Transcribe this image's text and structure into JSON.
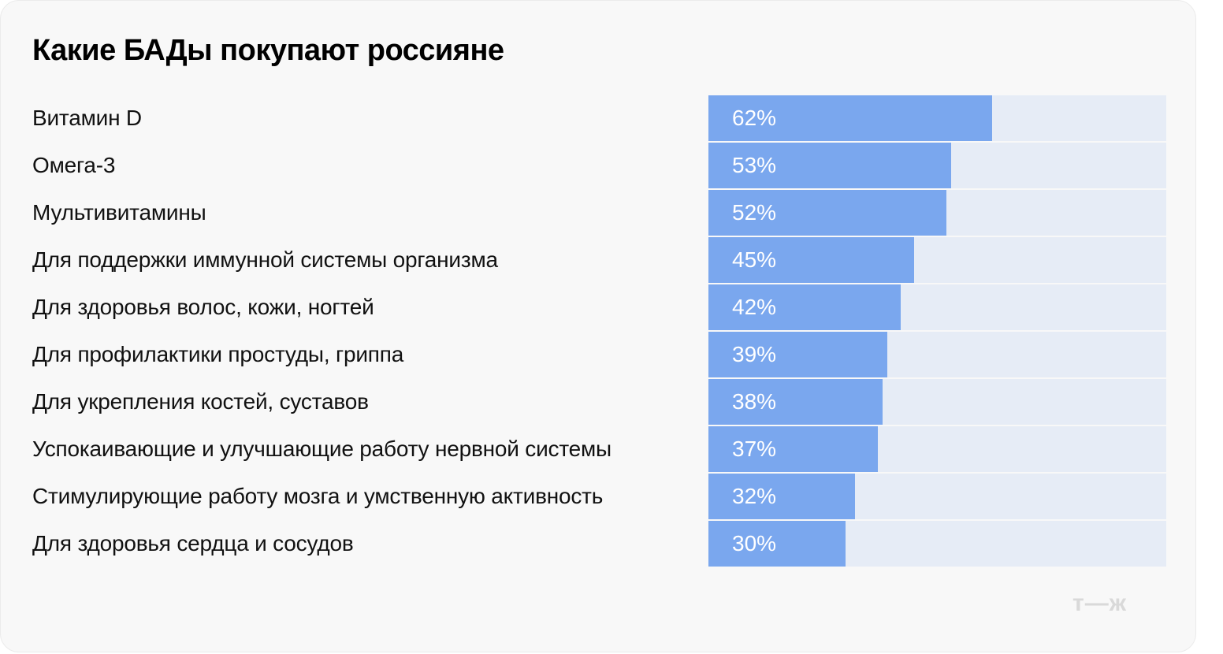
{
  "title": "Какие БАДы покупают россияне",
  "logo": "т—ж",
  "colors": {
    "bar": "#7aa7ee",
    "track": "#e6ecf6",
    "background": "#f8f8f8",
    "value_text": "#ffffff"
  },
  "rows": [
    {
      "label": "Витамин D",
      "value": 62,
      "value_label": "62%"
    },
    {
      "label": "Омега-3",
      "value": 53,
      "value_label": "53%"
    },
    {
      "label": "Мультивитамины",
      "value": 52,
      "value_label": "52%"
    },
    {
      "label": "Для поддержки иммунной системы организма",
      "value": 45,
      "value_label": "45%"
    },
    {
      "label": "Для здоровья волос, кожи, ногтей",
      "value": 42,
      "value_label": "42%"
    },
    {
      "label": "Для профилактики простуды, гриппа",
      "value": 39,
      "value_label": "39%"
    },
    {
      "label": "Для укрепления костей, суставов",
      "value": 38,
      "value_label": "38%"
    },
    {
      "label": "Успокаивающие и улучшающие работу нервной системы",
      "value": 37,
      "value_label": "37%"
    },
    {
      "label": "Стимулирующие работу мозга и умственную активность",
      "value": 32,
      "value_label": "32%"
    },
    {
      "label": "Для здоровья сердца и сосудов",
      "value": 30,
      "value_label": "30%"
    }
  ],
  "chart_data": {
    "type": "bar",
    "orientation": "horizontal",
    "title": "Какие БАДы покупают россияне",
    "categories": [
      "Витамин D",
      "Омега-3",
      "Мультивитамины",
      "Для поддержки иммунной системы организма",
      "Для здоровья волос, кожи, ногтей",
      "Для профилактики простуды, гриппа",
      "Для укрепления костей, суставов",
      "Успокаивающие и улучшающие работу нервной системы",
      "Стимулирующие работу мозга и умственную активность",
      "Для здоровья сердца и сосудов"
    ],
    "values": [
      62,
      53,
      52,
      45,
      42,
      39,
      38,
      37,
      32,
      30
    ],
    "unit": "%",
    "xlabel": "",
    "ylabel": "",
    "xlim": [
      0,
      100
    ],
    "grid": false,
    "legend": null
  }
}
